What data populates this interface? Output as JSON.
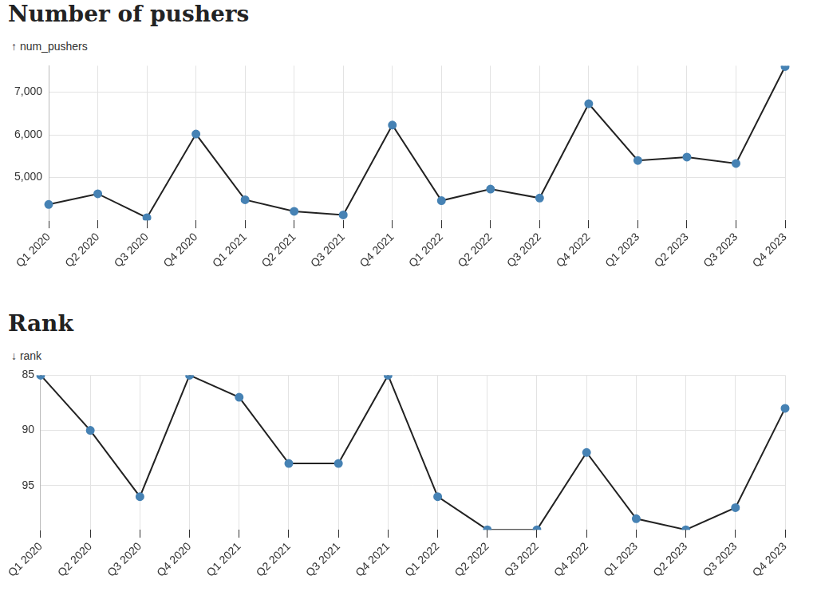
{
  "chart_data": [
    {
      "type": "line",
      "title": "Number of pushers",
      "y_label": "↑ num_pushers",
      "categories": [
        "Q1 2020",
        "Q2 2020",
        "Q3 2020",
        "Q4 2020",
        "Q1 2021",
        "Q2 2021",
        "Q3 2021",
        "Q4 2021",
        "Q1 2022",
        "Q2 2022",
        "Q3 2022",
        "Q4 2022",
        "Q1 2023",
        "Q2 2023",
        "Q3 2023",
        "Q4 2023"
      ],
      "values": [
        4370,
        4620,
        4060,
        6020,
        4480,
        4210,
        4125,
        6230,
        4460,
        4730,
        4520,
        6730,
        5400,
        5480,
        5330,
        7600
      ],
      "color": "#222222",
      "marker": "circle",
      "ylim": [
        4000,
        7620
      ],
      "yticks": [
        {
          "value": 5000,
          "label": "5,000"
        },
        {
          "value": 6000,
          "label": "6,000"
        },
        {
          "value": 7000,
          "label": "7,000"
        }
      ],
      "grid": true
    },
    {
      "type": "line",
      "title": "Rank",
      "y_label": "↓ rank",
      "categories": [
        "Q1 2020",
        "Q2 2020",
        "Q3 2020",
        "Q4 2020",
        "Q1 2021",
        "Q2 2021",
        "Q3 2021",
        "Q4 2021",
        "Q1 2022",
        "Q2 2022",
        "Q3 2022",
        "Q4 2022",
        "Q1 2023",
        "Q2 2023",
        "Q3 2023",
        "Q4 2023"
      ],
      "values": [
        85,
        90,
        96,
        85,
        87,
        93,
        93,
        85,
        96,
        99,
        99,
        92,
        98,
        99,
        97,
        88
      ],
      "color": "#222222",
      "marker": "circle",
      "ylim": [
        99,
        85
      ],
      "yticks": [
        85,
        90,
        95
      ],
      "grid": true
    }
  ]
}
